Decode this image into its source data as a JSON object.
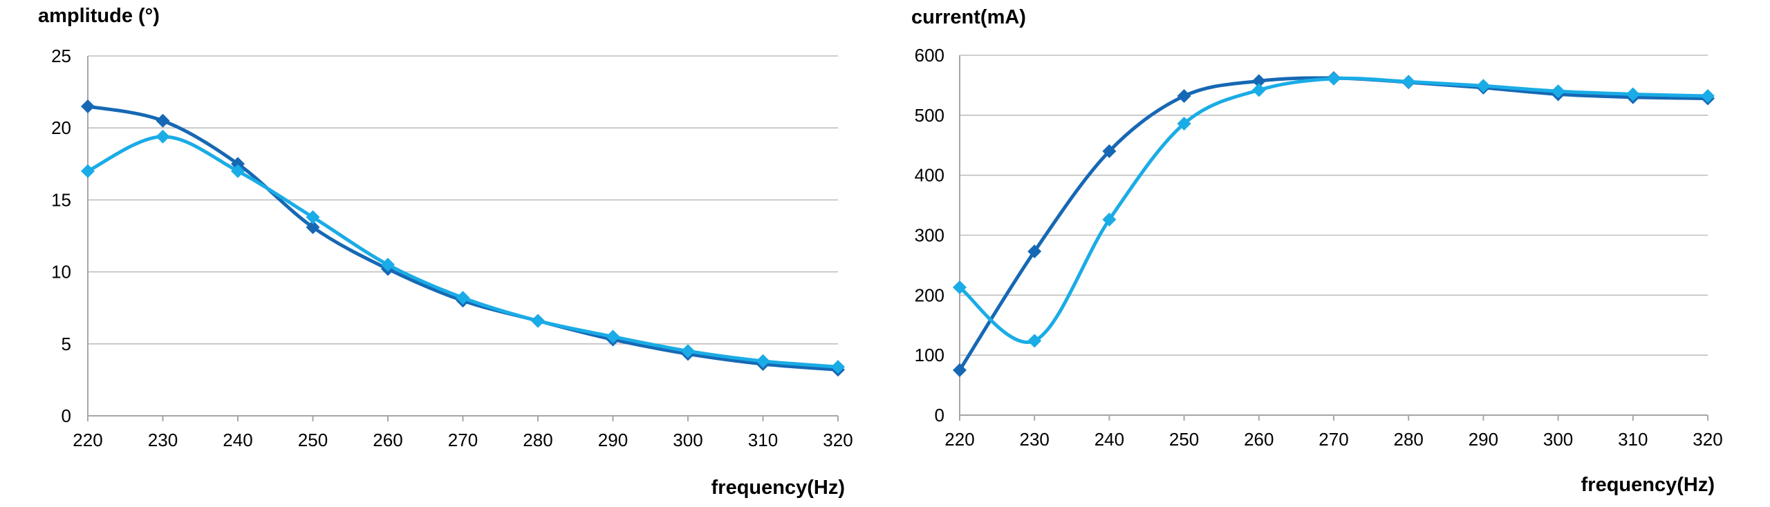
{
  "colors": {
    "series_1": "#1668b4",
    "series_2": "#1aace6",
    "grid": "#bfbfbf"
  },
  "chart_data": [
    {
      "type": "line",
      "ylabel": "amplitude (°)",
      "xlabel": "frequency(Hz)",
      "x": [
        220,
        230,
        240,
        250,
        260,
        270,
        280,
        290,
        300,
        310,
        320
      ],
      "xlim": [
        220,
        320
      ],
      "ylim": [
        0,
        25
      ],
      "yticks": [
        0,
        5,
        10,
        15,
        20,
        25
      ],
      "grid": true,
      "series": [
        {
          "color": "#1668b4",
          "marker": "diamond",
          "values": [
            21.5,
            20.5,
            17.5,
            13.1,
            10.2,
            8.0,
            6.6,
            5.3,
            4.3,
            3.6,
            3.2
          ]
        },
        {
          "color": "#1aace6",
          "marker": "diamond",
          "values": [
            17.0,
            19.4,
            17.0,
            13.8,
            10.5,
            8.2,
            6.6,
            5.5,
            4.5,
            3.8,
            3.4
          ]
        }
      ]
    },
    {
      "type": "line",
      "ylabel": "current(mA)",
      "xlabel": "frequency(Hz)",
      "x": [
        220,
        230,
        240,
        250,
        260,
        270,
        280,
        290,
        300,
        310,
        320
      ],
      "xlim": [
        220,
        320
      ],
      "ylim": [
        0,
        600
      ],
      "yticks": [
        0,
        100,
        200,
        300,
        400,
        500,
        600
      ],
      "grid": true,
      "series": [
        {
          "color": "#1668b4",
          "marker": "diamond",
          "values": [
            75,
            273,
            440,
            532,
            557,
            562,
            555,
            546,
            535,
            530,
            528
          ]
        },
        {
          "color": "#1aace6",
          "marker": "diamond",
          "values": [
            213,
            124,
            326,
            486,
            542,
            561,
            556,
            549,
            540,
            535,
            532
          ]
        }
      ]
    }
  ]
}
